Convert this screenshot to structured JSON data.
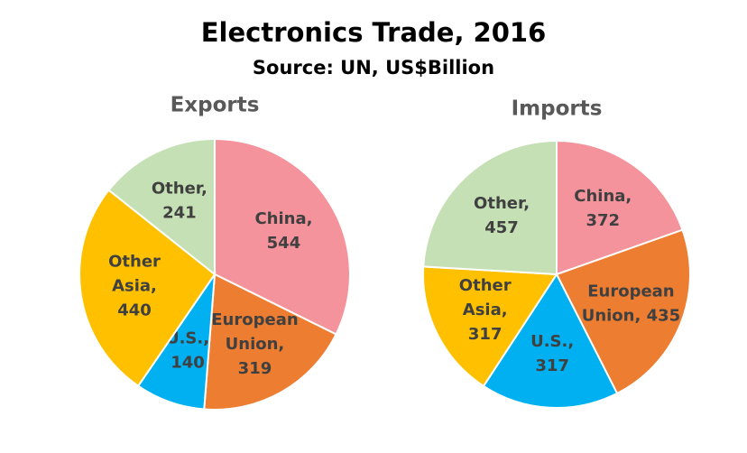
{
  "title": "Electronics Trade, 2016",
  "subtitle": "Source: UN, US$Billion",
  "chart_data": [
    {
      "type": "pie",
      "title": "Exports",
      "values": [
        544,
        319,
        140,
        440,
        241
      ],
      "value_labels": [
        [
          "China,",
          "544"
        ],
        [
          "European",
          "Union,",
          "319"
        ],
        [
          "U.S.,",
          "140"
        ],
        [
          "Other",
          "Asia,",
          "440"
        ],
        [
          "Other,",
          "241"
        ]
      ],
      "colors": [
        "#f4939b",
        "#ed7d31",
        "#00b0f0",
        "#ffc000",
        "#c5e0b4"
      ]
    },
    {
      "type": "pie",
      "title": "Imports",
      "values": [
        372,
        435,
        317,
        317,
        457
      ],
      "value_labels": [
        [
          "China,",
          "372"
        ],
        [
          "European",
          "Union, 435"
        ],
        [
          "U.S.,",
          "317"
        ],
        [
          "Other",
          "Asia,",
          "317"
        ],
        [
          "Other,",
          "457"
        ]
      ],
      "colors": [
        "#f4939b",
        "#ed7d31",
        "#00b0f0",
        "#ffc000",
        "#c5e0b4"
      ]
    }
  ]
}
